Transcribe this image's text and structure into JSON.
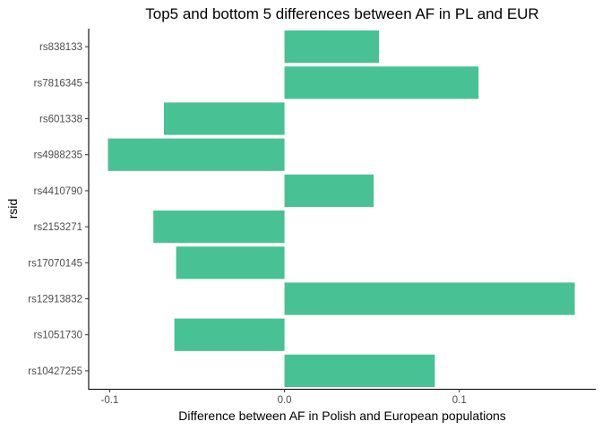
{
  "chart_data": {
    "type": "bar",
    "orientation": "horizontal",
    "title": "Top5 and bottom 5 differences between AF in PL and EUR",
    "xlabel": "Difference between AF in Polish and European populations",
    "ylabel": "rsid",
    "categories": [
      "rs838133",
      "rs7816345",
      "rs601338",
      "rs4988235",
      "rs4410790",
      "rs2153271",
      "rs17070145",
      "rs12913832",
      "rs1051730",
      "rs10427255"
    ],
    "values": [
      0.054,
      0.111,
      -0.069,
      -0.101,
      0.051,
      -0.075,
      -0.062,
      0.166,
      -0.063,
      0.086
    ],
    "xlim": [
      -0.112,
      0.178
    ],
    "x_ticks": [
      -0.1,
      0.0,
      0.1
    ],
    "x_tick_labels": [
      "-0.1",
      "0.0",
      "0.1"
    ],
    "bar_color": "#48c195",
    "grid": false,
    "legend": "none"
  }
}
